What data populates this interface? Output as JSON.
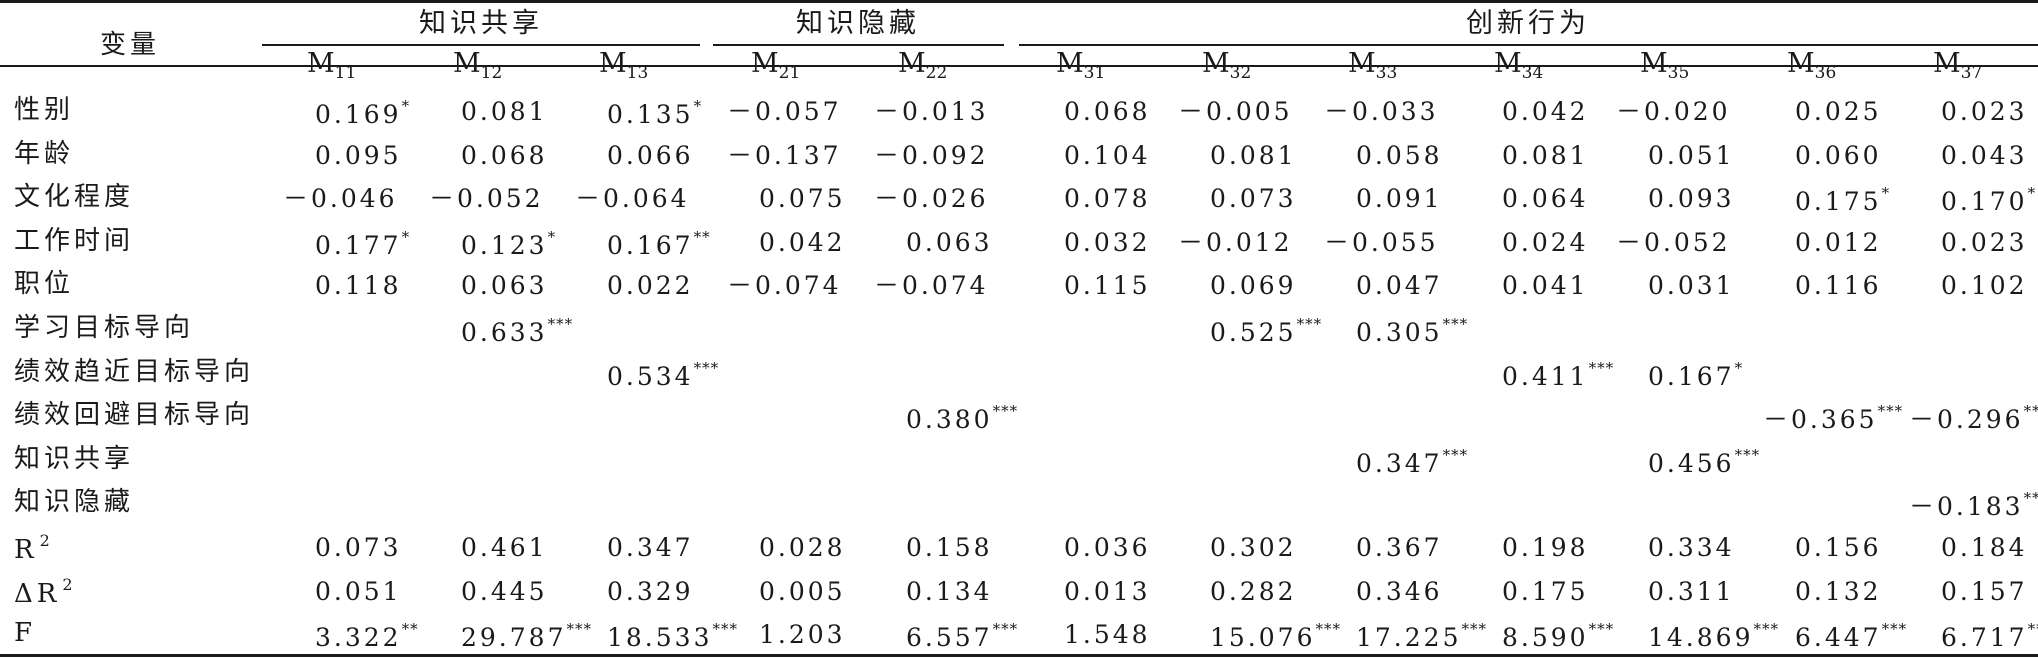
{
  "table": {
    "stub_header": "变量",
    "groups": [
      {
        "label": "知识共享",
        "models": [
          "11",
          "12",
          "13"
        ]
      },
      {
        "label": "知识隐藏",
        "models": [
          "21",
          "22"
        ]
      },
      {
        "label": "创新行为",
        "models": [
          "31",
          "32",
          "33",
          "34",
          "35",
          "36",
          "37"
        ]
      }
    ],
    "model_prefix": "M",
    "rows": [
      {
        "label": "性别",
        "cells": [
          [
            "0.169",
            "*"
          ],
          [
            "0.081",
            ""
          ],
          [
            "0.135",
            "*"
          ],
          [
            "－0.057",
            ""
          ],
          [
            "－0.013",
            ""
          ],
          [
            "0.068",
            ""
          ],
          [
            "－0.005",
            ""
          ],
          [
            "－0.033",
            ""
          ],
          [
            "0.042",
            ""
          ],
          [
            "－0.020",
            ""
          ],
          [
            "0.025",
            ""
          ],
          [
            "0.023",
            ""
          ]
        ]
      },
      {
        "label": "年龄",
        "cells": [
          [
            "0.095",
            ""
          ],
          [
            "0.068",
            ""
          ],
          [
            "0.066",
            ""
          ],
          [
            "－0.137",
            ""
          ],
          [
            "－0.092",
            ""
          ],
          [
            "0.104",
            ""
          ],
          [
            "0.081",
            ""
          ],
          [
            "0.058",
            ""
          ],
          [
            "0.081",
            ""
          ],
          [
            "0.051",
            ""
          ],
          [
            "0.060",
            ""
          ],
          [
            "0.043",
            ""
          ]
        ]
      },
      {
        "label": "文化程度",
        "cells": [
          [
            "－0.046",
            ""
          ],
          [
            "－0.052",
            ""
          ],
          [
            "－0.064",
            ""
          ],
          [
            "0.075",
            ""
          ],
          [
            "－0.026",
            ""
          ],
          [
            "0.078",
            ""
          ],
          [
            "0.073",
            ""
          ],
          [
            "0.091",
            ""
          ],
          [
            "0.064",
            ""
          ],
          [
            "0.093",
            ""
          ],
          [
            "0.175",
            "*"
          ],
          [
            "0.170",
            "*"
          ]
        ]
      },
      {
        "label": "工作时间",
        "cells": [
          [
            "0.177",
            "*"
          ],
          [
            "0.123",
            "*"
          ],
          [
            "0.167",
            "**"
          ],
          [
            "0.042",
            ""
          ],
          [
            "0.063",
            ""
          ],
          [
            "0.032",
            ""
          ],
          [
            "－0.012",
            ""
          ],
          [
            "－0.055",
            ""
          ],
          [
            "0.024",
            ""
          ],
          [
            "－0.052",
            ""
          ],
          [
            "0.012",
            ""
          ],
          [
            "0.023",
            ""
          ]
        ]
      },
      {
        "label": "职位",
        "cells": [
          [
            "0.118",
            ""
          ],
          [
            "0.063",
            ""
          ],
          [
            "0.022",
            ""
          ],
          [
            "－0.074",
            ""
          ],
          [
            "－0.074",
            ""
          ],
          [
            "0.115",
            ""
          ],
          [
            "0.069",
            ""
          ],
          [
            "0.047",
            ""
          ],
          [
            "0.041",
            ""
          ],
          [
            "0.031",
            ""
          ],
          [
            "0.116",
            ""
          ],
          [
            "0.102",
            ""
          ]
        ]
      },
      {
        "label": "学习目标导向",
        "cells": [
          [
            "",
            ""
          ],
          [
            "0.633",
            "***"
          ],
          [
            "",
            ""
          ],
          [
            "",
            ""
          ],
          [
            "",
            ""
          ],
          [
            "",
            ""
          ],
          [
            "0.525",
            "***"
          ],
          [
            "0.305",
            "***"
          ],
          [
            "",
            ""
          ],
          [
            "",
            ""
          ],
          [
            "",
            ""
          ],
          [
            "",
            ""
          ]
        ]
      },
      {
        "label": "绩效趋近目标导向",
        "cells": [
          [
            "",
            ""
          ],
          [
            "",
            ""
          ],
          [
            "0.534",
            "***"
          ],
          [
            "",
            ""
          ],
          [
            "",
            ""
          ],
          [
            "",
            ""
          ],
          [
            "",
            ""
          ],
          [
            "",
            ""
          ],
          [
            "0.411",
            "***"
          ],
          [
            "0.167",
            "*"
          ],
          [
            "",
            ""
          ],
          [
            "",
            ""
          ]
        ]
      },
      {
        "label": "绩效回避目标导向",
        "cells": [
          [
            "",
            ""
          ],
          [
            "",
            ""
          ],
          [
            "",
            ""
          ],
          [
            "",
            ""
          ],
          [
            "0.380",
            "***"
          ],
          [
            "",
            ""
          ],
          [
            "",
            ""
          ],
          [
            "",
            ""
          ],
          [
            "",
            ""
          ],
          [
            "",
            ""
          ],
          [
            "－0.365",
            "***"
          ],
          [
            "－0.296",
            "***"
          ]
        ]
      },
      {
        "label": "知识共享",
        "cells": [
          [
            "",
            ""
          ],
          [
            "",
            ""
          ],
          [
            "",
            ""
          ],
          [
            "",
            ""
          ],
          [
            "",
            ""
          ],
          [
            "",
            ""
          ],
          [
            "",
            ""
          ],
          [
            "0.347",
            "***"
          ],
          [
            "",
            ""
          ],
          [
            "0.456",
            "***"
          ],
          [
            "",
            ""
          ],
          [
            "",
            ""
          ]
        ]
      },
      {
        "label": "知识隐藏",
        "cells": [
          [
            "",
            ""
          ],
          [
            "",
            ""
          ],
          [
            "",
            ""
          ],
          [
            "",
            ""
          ],
          [
            "",
            ""
          ],
          [
            "",
            ""
          ],
          [
            "",
            ""
          ],
          [
            "",
            ""
          ],
          [
            "",
            ""
          ],
          [
            "",
            ""
          ],
          [
            "",
            ""
          ],
          [
            "－0.183",
            "**"
          ]
        ]
      },
      {
        "label": "R",
        "label_sup": "2",
        "cells": [
          [
            "0.073",
            ""
          ],
          [
            "0.461",
            ""
          ],
          [
            "0.347",
            ""
          ],
          [
            "0.028",
            ""
          ],
          [
            "0.158",
            ""
          ],
          [
            "0.036",
            ""
          ],
          [
            "0.302",
            ""
          ],
          [
            "0.367",
            ""
          ],
          [
            "0.198",
            ""
          ],
          [
            "0.334",
            ""
          ],
          [
            "0.156",
            ""
          ],
          [
            "0.184",
            ""
          ]
        ]
      },
      {
        "label": "ΔR",
        "label_sup": "2",
        "cells": [
          [
            "0.051",
            ""
          ],
          [
            "0.445",
            ""
          ],
          [
            "0.329",
            ""
          ],
          [
            "0.005",
            ""
          ],
          [
            "0.134",
            ""
          ],
          [
            "0.013",
            ""
          ],
          [
            "0.282",
            ""
          ],
          [
            "0.346",
            ""
          ],
          [
            "0.175",
            ""
          ],
          [
            "0.311",
            ""
          ],
          [
            "0.132",
            ""
          ],
          [
            "0.157",
            ""
          ]
        ]
      },
      {
        "label": "F",
        "cells": [
          [
            "3.322",
            "**"
          ],
          [
            "29.787",
            "***"
          ],
          [
            "18.533",
            "***"
          ],
          [
            "1.203",
            ""
          ],
          [
            "6.557",
            "***"
          ],
          [
            "1.548",
            ""
          ],
          [
            "15.076",
            "***"
          ],
          [
            "17.225",
            "***"
          ],
          [
            "8.590",
            "***"
          ],
          [
            "14.869",
            "***"
          ],
          [
            "6.447",
            "***"
          ],
          [
            "6.717",
            "***"
          ]
        ]
      }
    ]
  }
}
